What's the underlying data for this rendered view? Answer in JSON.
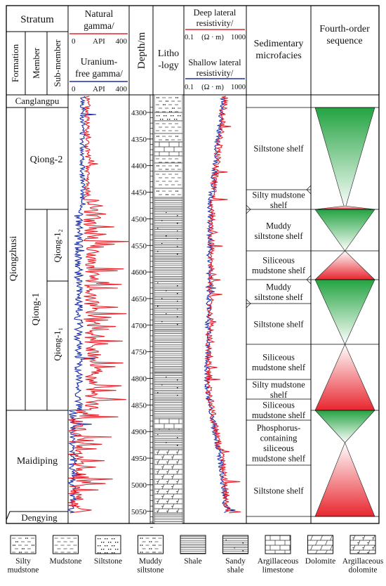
{
  "header": {
    "stratum": "Stratum",
    "formation": "Formation",
    "member": "Member",
    "submember": "Sub-member",
    "gamma_title": [
      "Natural",
      "gamma/"
    ],
    "gamma_scale": [
      "0",
      "API",
      "400"
    ],
    "ugamma_title": [
      "Uranium-",
      "free gamma/"
    ],
    "ugamma_scale": [
      "0",
      "API",
      "400"
    ],
    "depth": "Depth/m",
    "lithology": [
      "Litho",
      "-logy"
    ],
    "deep_title": [
      "Deep lateral",
      "resistivity/"
    ],
    "deep_scale": [
      "0.1",
      "(Ω · m)",
      "1000"
    ],
    "shallow_title": [
      "Shallow lateral",
      "resistivity/"
    ],
    "shallow_scale": [
      "0.1",
      "(Ω · m)",
      "1000"
    ],
    "microfacies": [
      "Sedimentary",
      "microfacies"
    ],
    "sequence": [
      "Fourth-order",
      "sequence"
    ]
  },
  "formations": [
    {
      "label": "Canglangpu"
    },
    {
      "label": "Qiongzhusi"
    },
    {
      "label": "Maidiping"
    },
    {
      "label": "Dengying"
    }
  ],
  "members": [
    {
      "label": "Qiong-2"
    },
    {
      "label": "Qiong-1"
    }
  ],
  "submembers": [
    {
      "label": "Qiong-1",
      "sub": "2"
    },
    {
      "label": "Qiong-1",
      "sub": "1"
    }
  ],
  "depth_ticks": [
    4300,
    4350,
    4400,
    4450,
    4500,
    4550,
    4600,
    4650,
    4700,
    4750,
    4800,
    4850,
    4900,
    4950,
    5000,
    5050
  ],
  "microfacies": [
    {
      "lines": [
        "Siltstone shelf"
      ]
    },
    {
      "lines": [
        "Silty mudstone",
        "shelf"
      ]
    },
    {
      "lines": [
        "Muddy",
        "siltstone shelf"
      ]
    },
    {
      "lines": [
        "Siliceous",
        "mudstone shelf"
      ]
    },
    {
      "lines": [
        "Muddy",
        "siltstone shelf"
      ]
    },
    {
      "lines": [
        "Siltstone shelf"
      ]
    },
    {
      "lines": [
        "Siliceous",
        "mudstone shelf"
      ]
    },
    {
      "lines": [
        "Silty mudstone",
        "shelf"
      ]
    },
    {
      "lines": [
        "Siliceous",
        "mudstone shelf"
      ]
    },
    {
      "lines": [
        "Phosphorus-",
        "containing",
        "siliceous",
        "mudstone shelf"
      ]
    },
    {
      "lines": [
        "Siltstone shelf"
      ]
    }
  ],
  "sequences": [
    {
      "color": "green"
    },
    {
      "color": "red"
    },
    {
      "color": "green"
    },
    {
      "color": "red"
    },
    {
      "color": "green"
    },
    {
      "color": "red"
    }
  ],
  "legend": [
    {
      "lines": [
        "Silty",
        "mudstone"
      ],
      "pattern": "siltymud"
    },
    {
      "lines": [
        "Mudstone"
      ],
      "pattern": "mud"
    },
    {
      "lines": [
        "Siltstone"
      ],
      "pattern": "silt"
    },
    {
      "lines": [
        "Muddy",
        "siltstone"
      ],
      "pattern": "muddysilt"
    },
    {
      "lines": [
        "Shale"
      ],
      "pattern": "shale"
    },
    {
      "lines": [
        "Sandy",
        "shale"
      ],
      "pattern": "sandyshale"
    },
    {
      "lines": [
        "Argillaceous",
        "limestone"
      ],
      "pattern": "limestone"
    },
    {
      "lines": [
        "Dolomite"
      ],
      "pattern": "dolomite"
    },
    {
      "lines": [
        "Argillaceous",
        "dolomite"
      ],
      "pattern": "argdolomite"
    }
  ],
  "colors": {
    "gamma": "#e8202a",
    "uranium_free_gamma": "#1c2fa8",
    "seq_green": "#2aa74a",
    "seq_red": "#e8303a"
  }
}
